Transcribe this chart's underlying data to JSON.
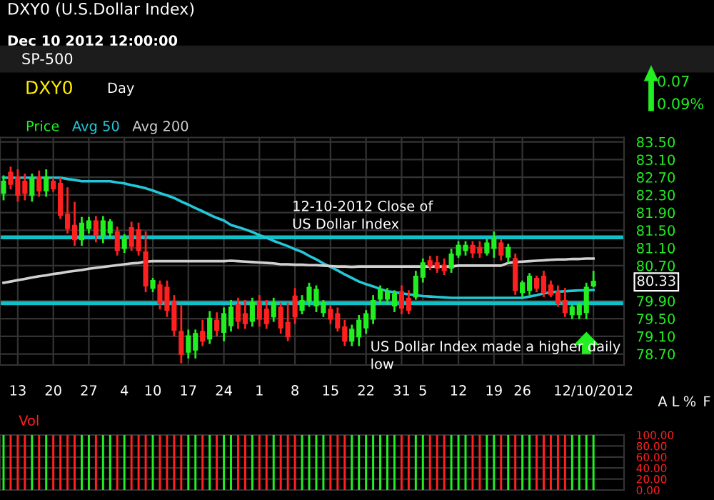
{
  "chart_data": [
    {
      "type": "candlestick",
      "title": "DXY0 (U.S.Dollar Index)",
      "subtitle": "Dec 10 2012 12:00:00",
      "categories": [
        null,
        null,
        "13",
        null,
        null,
        null,
        null,
        "20",
        null,
        null,
        null,
        null,
        "27",
        null,
        null,
        null,
        null,
        "4",
        null,
        null,
        null,
        "10",
        null,
        null,
        null,
        null,
        "17",
        null,
        null,
        null,
        null,
        "24",
        null,
        null,
        null,
        null,
        "1",
        null,
        null,
        null,
        null,
        "8",
        null,
        null,
        null,
        null,
        "15",
        null,
        null,
        null,
        null,
        "22",
        null,
        null,
        null,
        null,
        "31",
        null,
        null,
        "5",
        null,
        null,
        null,
        null,
        "12",
        null,
        null,
        null,
        null,
        "19",
        null,
        null,
        null,
        "26",
        null,
        null,
        null,
        null,
        null,
        null,
        null,
        null,
        null,
        "12/10/2012"
      ],
      "series": [
        {
          "name": "Price",
          "type": "candlestick",
          "color": "#22ee22",
          "colors": [
            "#22ee22",
            "#ff2020",
            "#ff2020",
            "#ff2020",
            "#22ee22",
            "#ff2020",
            "#22ee22",
            "#ff2020",
            "#ff2020",
            "#ff2020",
            "#ff2020",
            "#22ee22",
            "#22ee22",
            "#ff2020",
            "#22ee22",
            "#22ee22",
            "#ff2020",
            "#22ee22",
            "#ff2020",
            "#ff2020",
            "#ff2020",
            "#22ee22",
            "#ff2020",
            "#ff2020",
            "#ff2020",
            "#ff2020",
            "#22ee22",
            "#22ee22",
            "#ff2020",
            "#22ee22",
            "#ff2020",
            "#22ee22",
            "#22ee22",
            "#ff2020",
            "#ff2020",
            "#22ee22",
            "#ff2020",
            "#ff2020",
            "#22ee22",
            "#ff2020",
            "#ff2020",
            "#ff2020",
            "#22ee22",
            "#22ee22",
            "#22ee22",
            "#22ee22",
            "#ff2020",
            "#ff2020",
            "#ff2020",
            "#22ee22",
            "#22ee22",
            "#22ee22",
            "#22ee22",
            "#22ee22",
            "#22ee22",
            "#22ee22",
            "#ff2020",
            "#ff2020",
            "#22ee22",
            "#22ee22",
            "#ff2020",
            "#ff2020",
            "#ff2020",
            "#22ee22",
            "#22ee22",
            "#22ee22",
            "#ff2020",
            "#ff2020",
            "#22ee22",
            "#22ee22",
            "#ff2020",
            "#22ee22",
            "#ff2020",
            "#22ee22",
            "#22ee22",
            "#ff2020",
            "#ff2020",
            "#ff2020",
            "#ff2020",
            "#ff2020",
            "#22ee22",
            "#22ee22",
            "#22ee22",
            "#22ee22"
          ],
          "ohlc": [
            [
              82.35,
              82.72,
              82.2,
              82.6
            ],
            [
              82.8,
              82.92,
              82.45,
              82.55
            ],
            [
              82.7,
              82.86,
              82.17,
              82.3
            ],
            [
              82.6,
              82.76,
              82.2,
              82.35
            ],
            [
              82.3,
              82.76,
              82.17,
              82.65
            ],
            [
              82.7,
              82.83,
              82.28,
              82.4
            ],
            [
              82.4,
              82.86,
              82.28,
              82.7
            ],
            [
              82.6,
              82.67,
              82.39,
              82.45
            ],
            [
              82.55,
              82.67,
              81.78,
              81.85
            ],
            [
              81.85,
              82.45,
              81.45,
              81.55
            ],
            [
              81.6,
              82.12,
              81.17,
              81.3
            ],
            [
              81.3,
              81.78,
              81.17,
              81.65
            ],
            [
              81.55,
              81.78,
              81.45,
              81.7
            ],
            [
              81.7,
              81.8,
              81.25,
              81.4
            ],
            [
              81.4,
              81.8,
              81.23,
              81.7
            ],
            [
              81.45,
              81.73,
              81.34,
              81.68
            ],
            [
              81.45,
              81.56,
              80.95,
              81.05
            ],
            [
              81.1,
              81.39,
              81.01,
              81.3
            ],
            [
              81.55,
              81.67,
              81.06,
              81.15
            ],
            [
              81.5,
              81.65,
              80.95,
              81.05
            ],
            [
              81.0,
              81.45,
              80.12,
              80.25
            ],
            [
              80.2,
              80.4,
              80.12,
              80.35
            ],
            [
              80.25,
              80.34,
              79.73,
              79.85
            ],
            [
              80.2,
              80.34,
              79.56,
              79.7
            ],
            [
              79.85,
              80.01,
              79.12,
              79.25
            ],
            [
              79.2,
              79.79,
              78.51,
              78.7
            ],
            [
              78.75,
              79.23,
              78.62,
              79.1
            ],
            [
              78.8,
              79.23,
              78.62,
              79.15
            ],
            [
              79.2,
              79.45,
              78.9,
              79.0
            ],
            [
              79.05,
              79.65,
              78.95,
              79.5
            ],
            [
              79.45,
              79.62,
              79.12,
              79.25
            ],
            [
              79.2,
              79.73,
              79.01,
              79.6
            ],
            [
              79.35,
              79.9,
              79.23,
              79.75
            ],
            [
              79.8,
              79.95,
              79.29,
              79.45
            ],
            [
              79.6,
              79.9,
              79.29,
              79.4
            ],
            [
              79.45,
              79.95,
              79.34,
              79.85
            ],
            [
              79.85,
              80.01,
              79.34,
              79.5
            ],
            [
              79.7,
              79.9,
              79.29,
              79.4
            ],
            [
              79.55,
              79.95,
              79.45,
              79.85
            ],
            [
              79.75,
              79.84,
              79.18,
              79.3
            ],
            [
              79.4,
              79.84,
              79.01,
              79.1
            ],
            [
              80.0,
              80.17,
              79.4,
              79.55
            ],
            [
              79.7,
              80.01,
              79.62,
              79.9
            ],
            [
              79.9,
              80.29,
              79.79,
              80.2
            ],
            [
              79.8,
              80.23,
              79.67,
              80.15
            ],
            [
              79.65,
              79.9,
              79.56,
              79.85
            ],
            [
              79.7,
              79.79,
              79.4,
              79.5
            ],
            [
              79.6,
              79.73,
              79.23,
              79.3
            ],
            [
              79.3,
              79.45,
              78.9,
              79.0
            ],
            [
              79.0,
              79.34,
              78.9,
              79.25
            ],
            [
              79.1,
              79.56,
              78.9,
              79.45
            ],
            [
              79.3,
              79.67,
              79.18,
              79.6
            ],
            [
              79.5,
              80.01,
              79.4,
              79.9
            ],
            [
              79.95,
              80.23,
              79.84,
              80.15
            ],
            [
              79.95,
              80.17,
              79.84,
              80.1
            ],
            [
              79.8,
              80.12,
              79.67,
              80.05
            ],
            [
              80.1,
              80.23,
              79.62,
              79.75
            ],
            [
              79.95,
              80.12,
              79.62,
              79.7
            ],
            [
              80.0,
              80.56,
              79.95,
              80.45
            ],
            [
              80.45,
              80.84,
              80.34,
              80.75
            ],
            [
              80.8,
              80.9,
              80.62,
              80.7
            ],
            [
              80.75,
              80.9,
              80.56,
              80.65
            ],
            [
              80.7,
              80.84,
              80.51,
              80.6
            ],
            [
              80.65,
              81.06,
              80.56,
              80.95
            ],
            [
              80.95,
              81.23,
              80.9,
              81.15
            ],
            [
              81.05,
              81.23,
              80.95,
              81.15
            ],
            [
              81.15,
              81.23,
              80.9,
              81.0
            ],
            [
              81.1,
              81.23,
              80.9,
              81.0
            ],
            [
              81.0,
              81.28,
              80.95,
              81.2
            ],
            [
              81.1,
              81.45,
              80.9,
              81.3
            ],
            [
              81.2,
              81.28,
              80.84,
              80.95
            ],
            [
              80.9,
              81.17,
              80.79,
              81.1
            ],
            [
              80.85,
              80.95,
              80.06,
              80.15
            ],
            [
              80.1,
              80.34,
              80.01,
              80.3
            ],
            [
              80.15,
              80.51,
              80.06,
              80.45
            ],
            [
              80.4,
              80.45,
              80.12,
              80.2
            ],
            [
              80.45,
              80.56,
              80.01,
              80.1
            ],
            [
              80.25,
              80.34,
              80.01,
              80.05
            ],
            [
              80.1,
              80.23,
              79.79,
              79.85
            ],
            [
              79.9,
              80.17,
              79.56,
              79.65
            ],
            [
              79.6,
              79.79,
              79.51,
              79.75
            ],
            [
              79.6,
              79.84,
              79.51,
              79.8
            ],
            [
              79.65,
              80.29,
              79.51,
              80.2
            ],
            [
              80.25,
              80.56,
              80.23,
              80.33
            ]
          ]
        },
        {
          "name": "Avg 50",
          "type": "line",
          "color": "#22c8d8",
          "values": [
            82.69,
            82.69,
            82.69,
            82.69,
            82.69,
            82.69,
            82.69,
            82.69,
            82.69,
            82.66,
            82.64,
            82.61,
            82.61,
            82.61,
            82.61,
            82.61,
            82.58,
            82.56,
            82.52,
            82.49,
            82.45,
            82.4,
            82.34,
            82.29,
            82.23,
            82.15,
            82.08,
            82.0,
            81.93,
            81.85,
            81.78,
            81.72,
            81.62,
            81.57,
            81.52,
            81.46,
            81.39,
            81.33,
            81.26,
            81.2,
            81.14,
            81.07,
            81.01,
            80.92,
            80.84,
            80.75,
            80.67,
            80.59,
            80.5,
            80.42,
            80.34,
            80.28,
            80.23,
            80.17,
            80.12,
            80.1,
            80.07,
            80.05,
            80.03,
            80.01,
            80.0,
            79.99,
            79.98,
            79.97,
            79.97,
            79.97,
            79.97,
            79.97,
            79.97,
            79.97,
            79.97,
            79.97,
            79.97,
            79.97,
            80.0,
            80.03,
            80.07,
            80.1,
            80.11,
            80.12,
            80.13,
            80.14,
            80.14,
            80.15
          ]
        },
        {
          "name": "Avg 200",
          "type": "line",
          "color": "#d0d0d0",
          "values": [
            80.31,
            80.34,
            80.37,
            80.4,
            80.43,
            80.46,
            80.48,
            80.51,
            80.53,
            80.56,
            80.58,
            80.6,
            80.63,
            80.65,
            80.67,
            80.69,
            80.71,
            80.73,
            80.75,
            80.76,
            80.79,
            80.8,
            80.8,
            80.8,
            80.8,
            80.8,
            80.8,
            80.8,
            80.8,
            80.8,
            80.8,
            80.8,
            80.81,
            80.8,
            80.79,
            80.78,
            80.77,
            80.76,
            80.75,
            80.73,
            80.73,
            80.72,
            80.72,
            80.71,
            80.71,
            80.7,
            80.69,
            80.68,
            80.68,
            80.67,
            80.68,
            80.68,
            80.68,
            80.68,
            80.68,
            80.68,
            80.68,
            80.68,
            80.68,
            80.68,
            80.68,
            80.68,
            80.68,
            80.68,
            80.7,
            80.7,
            80.7,
            80.7,
            80.7,
            80.7,
            80.7,
            80.76,
            80.78,
            80.79,
            80.8,
            80.81,
            80.82,
            80.83,
            80.84,
            80.84,
            80.85,
            80.85,
            80.86,
            80.86
          ]
        }
      ],
      "ylim": [
        78.45,
        83.6
      ],
      "yticks": [
        {
          "value": 83.5,
          "label": "83.50"
        },
        {
          "value": 83.1,
          "label": "83.10"
        },
        {
          "value": 82.7,
          "label": "82.70"
        },
        {
          "value": 82.3,
          "label": "82.30"
        },
        {
          "value": 81.9,
          "label": "81.90"
        },
        {
          "value": 81.5,
          "label": "81.50"
        },
        {
          "value": 81.1,
          "label": "81.10"
        },
        {
          "value": 80.7,
          "label": "80.70"
        },
        {
          "value": 79.9,
          "label": "79.90"
        },
        {
          "value": 79.5,
          "label": "79.50"
        },
        {
          "value": 79.1,
          "label": "79.10"
        },
        {
          "value": 78.7,
          "label": "78.70"
        }
      ],
      "grid": true,
      "legend": "top left",
      "ref_lines": [
        {
          "axis": "y",
          "value": 81.34,
          "color": "#10c0c8"
        },
        {
          "axis": "y",
          "value": 79.85,
          "color": "#10c0c8"
        }
      ],
      "annotations": [
        "12-10-2012 Close of\nUS Dollar Index",
        "US Dollar Index made a higher daily\nlow",
        "80.33",
        "SP-500",
        "DXY0",
        "Day",
        "0.07",
        "0.09%",
        "A",
        "L",
        "%",
        "F"
      ]
    },
    {
      "type": "bar",
      "title": "Vol",
      "categories": [
        null,
        null,
        null,
        null,
        null,
        null,
        null,
        null,
        null,
        null,
        null,
        null,
        null,
        null,
        null,
        null,
        null,
        null,
        null,
        null,
        null,
        null,
        null,
        null,
        null,
        null,
        null,
        null,
        null,
        null,
        null,
        null,
        null,
        null,
        null,
        null,
        null,
        null,
        null,
        null,
        null,
        null,
        null,
        null,
        null,
        null,
        null,
        null,
        null,
        null,
        null,
        null,
        null,
        null,
        null,
        null,
        null,
        null,
        null,
        null,
        null,
        null,
        null,
        null,
        null,
        null,
        null,
        null,
        null,
        null,
        null,
        null,
        null,
        null,
        null,
        null,
        null,
        null,
        null,
        null,
        null,
        null,
        null,
        null
      ],
      "values": [
        100,
        100,
        100,
        100,
        100,
        100,
        100,
        100,
        100,
        100,
        100,
        100,
        100,
        100,
        100,
        100,
        100,
        100,
        100,
        100,
        100,
        100,
        100,
        100,
        100,
        100,
        100,
        100,
        100,
        100,
        100,
        100,
        100,
        100,
        100,
        100,
        100,
        100,
        100,
        100,
        100,
        100,
        100,
        100,
        100,
        100,
        100,
        100,
        100,
        100,
        100,
        100,
        100,
        100,
        100,
        100,
        100,
        100,
        100,
        100,
        100,
        100,
        100,
        100,
        100,
        100,
        100,
        100,
        100,
        100,
        100,
        100,
        100,
        100,
        100,
        100,
        100,
        100,
        100,
        100,
        100,
        100,
        100,
        100
      ],
      "colors": [
        "#22ee22",
        "#ff2020",
        "#ff2020",
        "#ff2020",
        "#22ee22",
        "#ff2020",
        "#22ee22",
        "#ff2020",
        "#ff2020",
        "#ff2020",
        "#ff2020",
        "#22ee22",
        "#22ee22",
        "#ff2020",
        "#22ee22",
        "#22ee22",
        "#ff2020",
        "#22ee22",
        "#ff2020",
        "#ff2020",
        "#ff2020",
        "#22ee22",
        "#ff2020",
        "#ff2020",
        "#ff2020",
        "#ff2020",
        "#22ee22",
        "#22ee22",
        "#ff2020",
        "#22ee22",
        "#ff2020",
        "#22ee22",
        "#22ee22",
        "#ff2020",
        "#ff2020",
        "#22ee22",
        "#ff2020",
        "#ff2020",
        "#22ee22",
        "#ff2020",
        "#ff2020",
        "#ff2020",
        "#22ee22",
        "#22ee22",
        "#22ee22",
        "#22ee22",
        "#ff2020",
        "#ff2020",
        "#ff2020",
        "#22ee22",
        "#22ee22",
        "#22ee22",
        "#22ee22",
        "#22ee22",
        "#22ee22",
        "#22ee22",
        "#ff2020",
        "#ff2020",
        "#22ee22",
        "#22ee22",
        "#ff2020",
        "#ff2020",
        "#ff2020",
        "#22ee22",
        "#22ee22",
        "#22ee22",
        "#ff2020",
        "#ff2020",
        "#22ee22",
        "#22ee22",
        "#ff2020",
        "#22ee22",
        "#ff2020",
        "#22ee22",
        "#22ee22",
        "#ff2020",
        "#ff2020",
        "#ff2020",
        "#ff2020",
        "#ff2020",
        "#22ee22",
        "#22ee22",
        "#22ee22",
        "#22ee22"
      ],
      "ylim": [
        0,
        100
      ],
      "yticks": [
        {
          "value": 0,
          "label": "0.00"
        },
        {
          "value": 20,
          "label": "20.00"
        },
        {
          "value": 40,
          "label": "40.00"
        },
        {
          "value": 60,
          "label": "60.00"
        },
        {
          "value": 80,
          "label": "80.00"
        },
        {
          "value": 100,
          "label": "100.00"
        }
      ],
      "grid": "y",
      "tick_labels": "y"
    }
  ]
}
